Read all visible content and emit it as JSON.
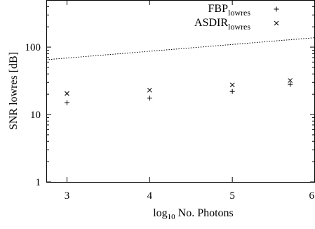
{
  "chart_data": {
    "type": "scatter",
    "y_scale": "log",
    "x_scale": "linear",
    "xlim": [
      2.75,
      6
    ],
    "ylim": [
      1,
      500
    ],
    "xticks": [
      3,
      4,
      5,
      6
    ],
    "yticks": [
      1,
      10,
      100
    ],
    "xtick_labels": [
      "3",
      "4",
      "5",
      "6"
    ],
    "ytick_labels": [
      "1",
      "10",
      "100"
    ],
    "xlabel": {
      "prefix": "log",
      "subscript": "10",
      "suffix": " No. Photons"
    },
    "ylabel": "SNR lowres [dB]",
    "legend_position": "top-right",
    "series": [
      {
        "name": {
          "base": "FBP",
          "subscript": "lowres"
        },
        "marker": "plus",
        "color": "#000000",
        "x": [
          3,
          4,
          5,
          5.7
        ],
        "y": [
          15,
          17.5,
          22,
          28
        ]
      },
      {
        "name": {
          "base": "ASDIR",
          "subscript": "lowres"
        },
        "marker": "cross",
        "color": "#000000",
        "x": [
          3,
          4,
          5,
          5.7
        ],
        "y": [
          20.5,
          23,
          27.5,
          32
        ]
      }
    ],
    "reference_line": {
      "style": "dotted",
      "color": "#000000",
      "x": [
        2.75,
        6
      ],
      "y": [
        65,
        138
      ]
    }
  }
}
